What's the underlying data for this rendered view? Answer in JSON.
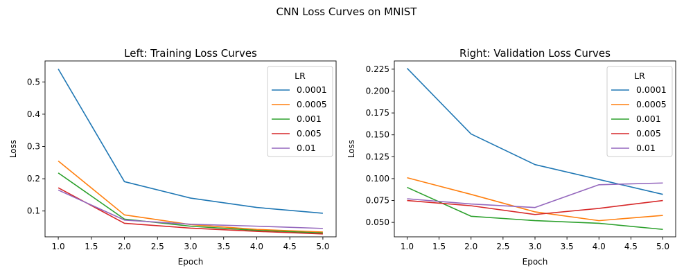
{
  "figure": {
    "title": "CNN Loss Curves on MNIST"
  },
  "chart_data": [
    {
      "type": "line",
      "title": "Left: Training Loss Curves",
      "xlabel": "Epoch",
      "ylabel": "Loss",
      "xlim": [
        0.8,
        5.2
      ],
      "ylim": [
        0.02,
        0.565
      ],
      "xticks": [
        "1.0",
        "1.5",
        "2.0",
        "2.5",
        "3.0",
        "3.5",
        "4.0",
        "4.5",
        "5.0"
      ],
      "yticks": [
        "0.1",
        "0.2",
        "0.3",
        "0.4",
        "0.5"
      ],
      "legend_title": "LR",
      "legend_position": "top-right",
      "grid": false,
      "x": [
        1,
        2,
        3,
        4,
        5
      ],
      "series": [
        {
          "name": "0.0001",
          "color": "#1f77b4",
          "values": [
            0.54,
            0.191,
            0.14,
            0.111,
            0.093
          ]
        },
        {
          "name": "0.0005",
          "color": "#ff7f0e",
          "values": [
            0.255,
            0.088,
            0.058,
            0.043,
            0.035
          ]
        },
        {
          "name": "0.001",
          "color": "#2ca02c",
          "values": [
            0.218,
            0.075,
            0.053,
            0.04,
            0.032
          ]
        },
        {
          "name": "0.005",
          "color": "#d62728",
          "values": [
            0.172,
            0.062,
            0.047,
            0.037,
            0.029
          ]
        },
        {
          "name": "0.01",
          "color": "#9467bd",
          "values": [
            0.165,
            0.072,
            0.059,
            0.053,
            0.046
          ]
        }
      ]
    },
    {
      "type": "line",
      "title": "Right: Validation Loss Curves",
      "xlabel": "Epoch",
      "ylabel": "Loss",
      "xlim": [
        0.8,
        5.2
      ],
      "ylim": [
        0.0335,
        0.2344
      ],
      "xticks": [
        "1.0",
        "1.5",
        "2.0",
        "2.5",
        "3.0",
        "3.5",
        "4.0",
        "4.5",
        "5.0"
      ],
      "yticks": [
        "0.050",
        "0.075",
        "0.100",
        "0.125",
        "0.150",
        "0.175",
        "0.200",
        "0.225"
      ],
      "legend_title": "LR",
      "legend_position": "top-right",
      "grid": false,
      "x": [
        1,
        2,
        3,
        4,
        5
      ],
      "series": [
        {
          "name": "0.0001",
          "color": "#1f77b4",
          "values": [
            0.226,
            0.151,
            0.116,
            0.099,
            0.082
          ]
        },
        {
          "name": "0.0005",
          "color": "#ff7f0e",
          "values": [
            0.101,
            0.082,
            0.062,
            0.052,
            0.058
          ]
        },
        {
          "name": "0.001",
          "color": "#2ca02c",
          "values": [
            0.09,
            0.057,
            0.052,
            0.049,
            0.042
          ]
        },
        {
          "name": "0.005",
          "color": "#d62728",
          "values": [
            0.075,
            0.069,
            0.059,
            0.066,
            0.075
          ]
        },
        {
          "name": "0.01",
          "color": "#9467bd",
          "values": [
            0.077,
            0.071,
            0.067,
            0.093,
            0.095
          ]
        }
      ]
    }
  ]
}
